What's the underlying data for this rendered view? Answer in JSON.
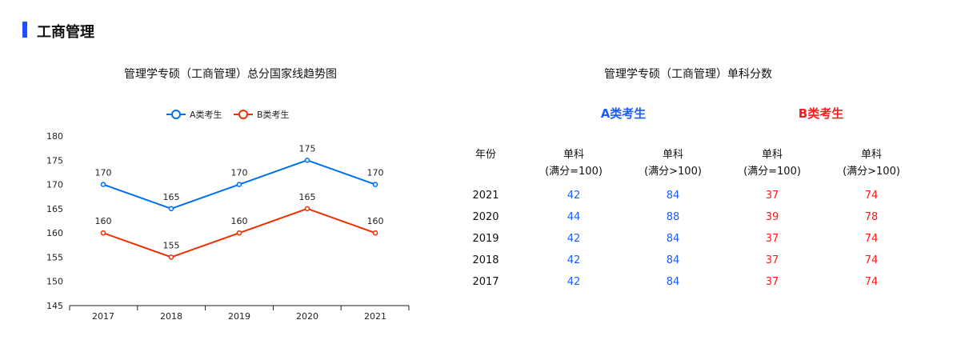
{
  "section_title": "工商管理",
  "colors": {
    "accent": "#1e50ff",
    "series_a": "#0070f0",
    "series_b": "#f03000",
    "table_a": "#1a5cff",
    "table_b": "#ff1a1a"
  },
  "chart_data": {
    "type": "line",
    "title": "管理学专硕（工商管理）总分国家线趋势图",
    "categories": [
      "2017",
      "2018",
      "2019",
      "2020",
      "2021"
    ],
    "series": [
      {
        "name": "A类考生",
        "values": [
          170,
          165,
          170,
          175,
          170
        ]
      },
      {
        "name": "B类考生",
        "values": [
          160,
          155,
          160,
          165,
          160
        ]
      }
    ],
    "ylim": [
      145,
      180
    ],
    "yticks": [
      "145",
      "150",
      "155",
      "160",
      "165",
      "170",
      "175",
      "180"
    ],
    "legend": "top-center",
    "grid": false
  },
  "table": {
    "title": "管理学专硕（工商管理）单科分数",
    "group_a": "A类考生",
    "group_b": "B类考生",
    "year_header": "年份",
    "headers": [
      {
        "l1": "单科",
        "l2": "(满分=100)"
      },
      {
        "l1": "单科",
        "l2": "(满分>100)"
      },
      {
        "l1": "单科",
        "l2": "(满分=100)"
      },
      {
        "l1": "单科",
        "l2": "(满分>100)"
      }
    ],
    "rows": [
      [
        "2021",
        "42",
        "84",
        "37",
        "74"
      ],
      [
        "2020",
        "44",
        "88",
        "39",
        "78"
      ],
      [
        "2019",
        "42",
        "84",
        "37",
        "74"
      ],
      [
        "2018",
        "42",
        "84",
        "37",
        "74"
      ],
      [
        "2017",
        "42",
        "84",
        "37",
        "74"
      ]
    ]
  }
}
